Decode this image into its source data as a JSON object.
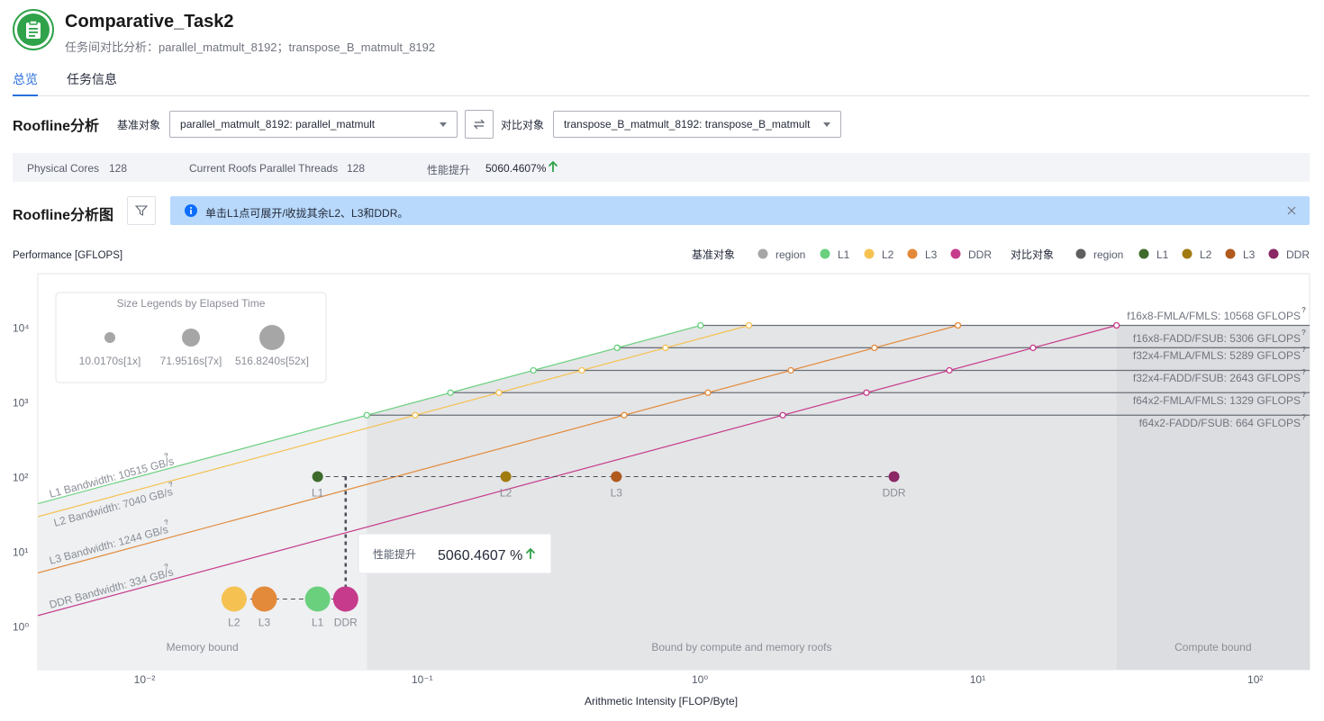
{
  "header": {
    "title": "Comparative_Task2",
    "subtitle": "任务间对比分析：parallel_matmult_8192；transpose_B_matmult_8192",
    "logo_icon": "clipboard-icon"
  },
  "tabs": [
    {
      "label": "总览",
      "active": true
    },
    {
      "label": "任务信息",
      "active": false
    }
  ],
  "roofline": {
    "title": "Roofline分析",
    "base_label": "基准对象",
    "base_value": "parallel_matmult_8192: parallel_matmult",
    "compare_label": "对比对象",
    "compare_value": "transpose_B_matmult_8192: transpose_B_matmult"
  },
  "stats": {
    "cores_label": "Physical Cores",
    "cores_value": "128",
    "threads_label": "Current Roofs Parallel Threads",
    "threads_value": "128",
    "perf_label": "性能提升",
    "perf_value": "5060.4607%"
  },
  "chart_section": {
    "title": "Roofline分析图",
    "alert": "单击L1点可展开/收拢其余L2、L3和DDR。"
  },
  "chart_data": {
    "type": "scatter",
    "ylabel": "Performance [GFLOPS]",
    "xlabel": "Arithmetic Intensity [FLOP/Byte]",
    "x_scale": "log",
    "y_scale": "log",
    "x_ticks": [
      "10⁻²",
      "10⁻¹",
      "10⁰",
      "10¹",
      "10²"
    ],
    "y_ticks": [
      "10⁰",
      "10¹",
      "10²",
      "10³",
      "10⁴"
    ],
    "legend": {
      "base_label": "基准对象",
      "compare_label": "对比对象",
      "base": [
        {
          "name": "region",
          "color": "#a6a6a6"
        },
        {
          "name": "L1",
          "color": "#6ad07e"
        },
        {
          "name": "L2",
          "color": "#f5c252"
        },
        {
          "name": "L3",
          "color": "#e38a3a"
        },
        {
          "name": "DDR",
          "color": "#c63b8b"
        }
      ],
      "compare": [
        {
          "name": "region",
          "color": "#5f5f5f"
        },
        {
          "name": "L1",
          "color": "#3e6b2b"
        },
        {
          "name": "L2",
          "color": "#a17a10"
        },
        {
          "name": "L3",
          "color": "#b05a1e"
        },
        {
          "name": "DDR",
          "color": "#8a2764"
        }
      ]
    },
    "size_legend": {
      "title": "Size Legends by Elapsed Time",
      "items": [
        "10.0170s[1x]",
        "71.9516s[7x]",
        "516.8240s[52x]"
      ]
    },
    "bandwidths": [
      {
        "label": "L1 Bandwidth: 10515 GB/s",
        "value": 10515,
        "color": "#6ad07e"
      },
      {
        "label": "L2 Bandwidth: 7040 GB/s",
        "value": 7040,
        "color": "#f5c252"
      },
      {
        "label": "L3 Bandwidth: 1244 GB/s",
        "value": 1244,
        "color": "#e38a3a"
      },
      {
        "label": "DDR Bandwidth: 334 GB/s",
        "value": 334,
        "color": "#c63b8b"
      }
    ],
    "compute_roofs": [
      {
        "label": "f16x8-FMLA/FMLS: 10568 GFLOPS",
        "value": 10568
      },
      {
        "label": "f16x8-FADD/FSUB: 5306 GFLOPS",
        "value": 5306
      },
      {
        "label": "f32x4-FMLA/FMLS: 5289 GFLOPS",
        "value": 5289
      },
      {
        "label": "f32x4-FADD/FSUB: 2643 GFLOPS",
        "value": 2643
      },
      {
        "label": "f64x2-FMLA/FMLS: 1329 GFLOPS",
        "value": 1329
      },
      {
        "label": "f64x2-FADD/FSUB: 664 GFLOPS",
        "value": 664
      }
    ],
    "regions": [
      "Memory bound",
      "Bound by compute and memory roofs",
      "Compute bound"
    ],
    "compare_points": [
      {
        "name": "L1",
        "x": 0.042,
        "y": 100
      },
      {
        "name": "L2",
        "x": 0.2,
        "y": 100
      },
      {
        "name": "L3",
        "x": 0.5,
        "y": 100
      },
      {
        "name": "DDR",
        "x": 5,
        "y": 100
      }
    ],
    "base_points": [
      {
        "name": "L2",
        "x": 0.021,
        "y": 2.3
      },
      {
        "name": "L3",
        "x": 0.027,
        "y": 2.3
      },
      {
        "name": "L1",
        "x": 0.042,
        "y": 2.3
      },
      {
        "name": "DDR",
        "x": 0.053,
        "y": 2.3
      }
    ],
    "tooltip": {
      "label": "性能提升",
      "value": "5060.4607 %"
    }
  }
}
